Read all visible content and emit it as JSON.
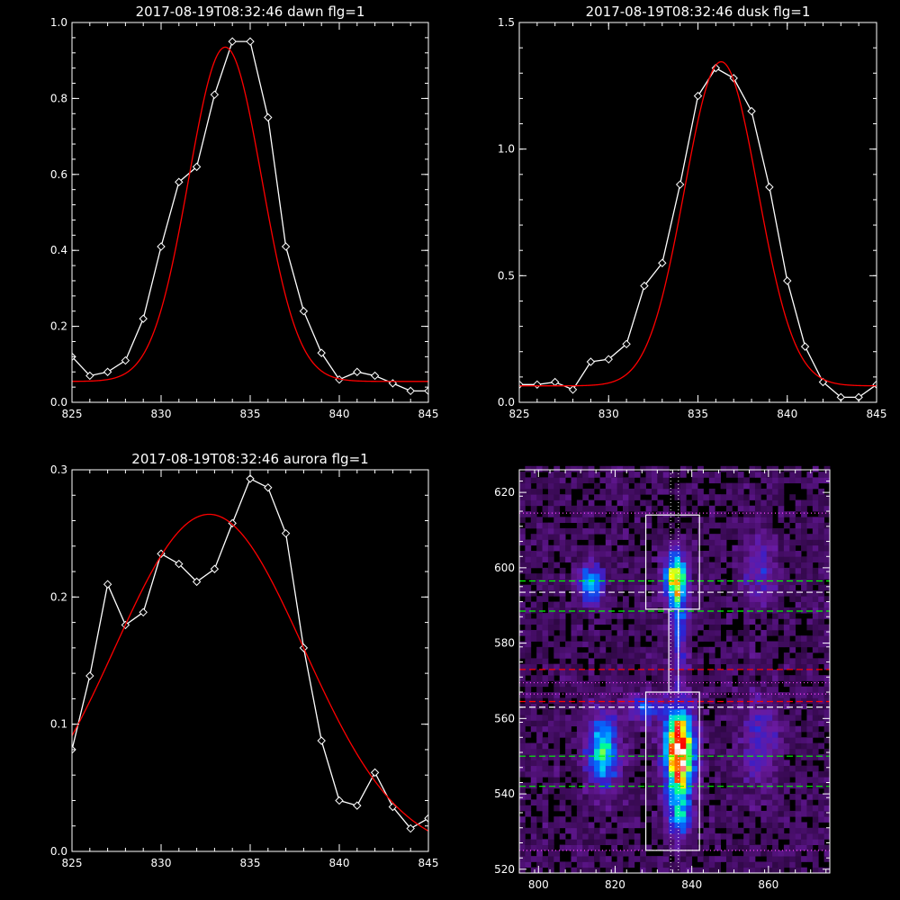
{
  "colors": {
    "background": "#000000",
    "axes": "#ffffff",
    "data_line": "#ffffff",
    "fit_line": "#ff0000",
    "boxes": "#ffffff",
    "dotted_magenta": "#ff44ff",
    "dashed_green": "#00ff00",
    "dashed_red": "#ff0000",
    "dashed_white": "#ffffff"
  },
  "chart_data": [
    {
      "id": "dawn",
      "type": "line",
      "title": "2017-08-19T08:32:46 dawn flg=1",
      "xlim": [
        825,
        845
      ],
      "ylim": [
        0,
        1.0
      ],
      "xticks": [
        825,
        830,
        835,
        840,
        845
      ],
      "yticks": [
        0.0,
        0.2,
        0.4,
        0.6,
        0.8,
        1.0
      ],
      "xtick_labels": [
        "825",
        "830",
        "835",
        "840",
        "845"
      ],
      "ytick_labels": [
        "0.0",
        "0.2",
        "0.4",
        "0.6",
        "0.8",
        "1.0"
      ],
      "series": [
        {
          "style": "line+diamond",
          "color": "#ffffff",
          "x": [
            825,
            826,
            827,
            828,
            829,
            830,
            831,
            832,
            833,
            834,
            835,
            836,
            837,
            838,
            839,
            840,
            841,
            842,
            843,
            844,
            845
          ],
          "y": [
            0.12,
            0.07,
            0.08,
            0.11,
            0.22,
            0.41,
            0.58,
            0.62,
            0.81,
            0.95,
            0.95,
            0.75,
            0.41,
            0.24,
            0.13,
            0.06,
            0.08,
            0.07,
            0.05,
            0.03,
            0.03
          ]
        },
        {
          "style": "line",
          "color": "#ff0000",
          "fit": {
            "type": "gaussian",
            "amplitude": 0.88,
            "center": 833.6,
            "sigma": 2.05,
            "offset": 0.055
          }
        }
      ]
    },
    {
      "id": "dusk",
      "type": "line",
      "title": "2017-08-19T08:32:46 dusk flg=1",
      "xlim": [
        825,
        845
      ],
      "ylim": [
        0,
        1.5
      ],
      "xticks": [
        825,
        830,
        835,
        840,
        845
      ],
      "yticks": [
        0.0,
        0.5,
        1.0,
        1.5
      ],
      "xtick_labels": [
        "825",
        "830",
        "835",
        "840",
        "845"
      ],
      "ytick_labels": [
        "0.0",
        "0.5",
        "1.0",
        "1.5"
      ],
      "series": [
        {
          "style": "line+diamond",
          "color": "#ffffff",
          "x": [
            825,
            826,
            827,
            828,
            829,
            830,
            831,
            832,
            833,
            834,
            835,
            836,
            837,
            838,
            839,
            840,
            841,
            842,
            843,
            844,
            845
          ],
          "y": [
            0.07,
            0.07,
            0.08,
            0.05,
            0.16,
            0.17,
            0.23,
            0.46,
            0.55,
            0.86,
            1.21,
            1.32,
            1.28,
            1.15,
            0.85,
            0.48,
            0.22,
            0.08,
            0.02,
            0.02,
            0.07
          ]
        },
        {
          "style": "line",
          "color": "#ff0000",
          "fit": {
            "type": "gaussian",
            "amplitude": 1.28,
            "center": 836.3,
            "sigma": 2.05,
            "offset": 0.065
          }
        }
      ]
    },
    {
      "id": "aurora",
      "type": "line",
      "title": "2017-08-19T08:32:46 aurora flg=1",
      "xlim": [
        825,
        845
      ],
      "ylim": [
        0,
        0.3
      ],
      "xticks": [
        825,
        830,
        835,
        840,
        845
      ],
      "yticks": [
        0.0,
        0.1,
        0.2,
        0.3
      ],
      "xtick_labels": [
        "825",
        "830",
        "835",
        "840",
        "845"
      ],
      "ytick_labels": [
        "0.0",
        "0.1",
        "0.2",
        "0.3"
      ],
      "series": [
        {
          "style": "line+diamond",
          "color": "#ffffff",
          "x": [
            825,
            826,
            827,
            828,
            829,
            830,
            831,
            832,
            833,
            834,
            835,
            836,
            837,
            838,
            839,
            840,
            841,
            842,
            843,
            844,
            845
          ],
          "y": [
            0.08,
            0.138,
            0.21,
            0.178,
            0.188,
            0.234,
            0.226,
            0.212,
            0.222,
            0.258,
            0.293,
            0.286,
            0.25,
            0.16,
            0.087,
            0.04,
            0.036,
            0.062,
            0.035,
            0.018,
            0.026
          ]
        },
        {
          "style": "line",
          "color": "#ff0000",
          "fit": {
            "type": "gaussian",
            "amplitude": 0.267,
            "center": 832.7,
            "sigma": 5.3,
            "offset": -0.002
          }
        }
      ]
    },
    {
      "id": "image",
      "type": "heatmap",
      "title": "",
      "xlim": [
        795,
        876
      ],
      "ylim": [
        519,
        626
      ],
      "xticks": [
        800,
        820,
        840,
        860
      ],
      "yticks": [
        520,
        540,
        560,
        580,
        600,
        620
      ],
      "xtick_labels": [
        "800",
        "820",
        "840",
        "860"
      ],
      "ytick_labels": [
        "520",
        "540",
        "560",
        "580",
        "600",
        "620"
      ],
      "colormap": [
        "#000000",
        "#3a0a55",
        "#6a1aa0",
        "#3020d0",
        "#0070ff",
        "#00c8ff",
        "#00ff90",
        "#ffff00",
        "#ff8000",
        "#ff0000",
        "#ffffff"
      ],
      "sources": [
        {
          "x": 813,
          "y": 595,
          "sx": 2.2,
          "sy": 3.5,
          "amp": 0.38
        },
        {
          "x": 816,
          "y": 551,
          "sx": 2.8,
          "sy": 6.5,
          "amp": 0.45
        },
        {
          "x": 835,
          "y": 596,
          "sx": 2.0,
          "sy": 4.5,
          "amp": 0.62
        },
        {
          "x": 836,
          "y": 584,
          "sx": 1.6,
          "sy": 8.0,
          "amp": 0.25
        },
        {
          "x": 836,
          "y": 551,
          "sx": 2.5,
          "sy": 7.5,
          "amp": 0.95
        },
        {
          "x": 836,
          "y": 535,
          "sx": 2.0,
          "sy": 5.0,
          "amp": 0.35
        },
        {
          "x": 827,
          "y": 562,
          "sx": 2.5,
          "sy": 2.5,
          "amp": 0.3
        },
        {
          "x": 857,
          "y": 598,
          "sx": 3.0,
          "sy": 6.0,
          "amp": 0.16
        },
        {
          "x": 857,
          "y": 553,
          "sx": 3.5,
          "sy": 9.0,
          "amp": 0.16
        }
      ],
      "boxes": [
        {
          "x0": 828,
          "x1": 842,
          "y0": 589,
          "y1": 614
        },
        {
          "x0": 828,
          "x1": 842,
          "y0": 525,
          "y1": 567
        },
        {
          "x0": 834,
          "x1": 836.5,
          "y0": 567,
          "y1": 589
        }
      ],
      "hlines": [
        {
          "y": 614.5,
          "style": "dotted",
          "color": "#ff44ff"
        },
        {
          "y": 596.5,
          "style": "dashed",
          "color": "#00ff00"
        },
        {
          "y": 593.5,
          "style": "dashed",
          "color": "#ffffff"
        },
        {
          "y": 588.5,
          "style": "dashed",
          "color": "#00ff00"
        },
        {
          "y": 573.0,
          "style": "dashed",
          "color": "#ff0000"
        },
        {
          "y": 569.5,
          "style": "dotted",
          "color": "#ff44ff"
        },
        {
          "y": 566.5,
          "style": "dotted",
          "color": "#ff44ff"
        },
        {
          "y": 564.5,
          "style": "dashed",
          "color": "#ff0000"
        },
        {
          "y": 563.0,
          "style": "dashed",
          "color": "#ffffff"
        },
        {
          "y": 550.0,
          "style": "dashed",
          "color": "#00ff00"
        },
        {
          "y": 542.0,
          "style": "dashed",
          "color": "#00ff00"
        },
        {
          "y": 525.0,
          "style": "dotted",
          "color": "#ff44ff"
        }
      ],
      "vlines": [
        {
          "x": 834.5,
          "style": "dotted",
          "color": "#ffffff"
        },
        {
          "x": 836.5,
          "style": "dotted",
          "color": "#ffffff"
        }
      ]
    }
  ]
}
